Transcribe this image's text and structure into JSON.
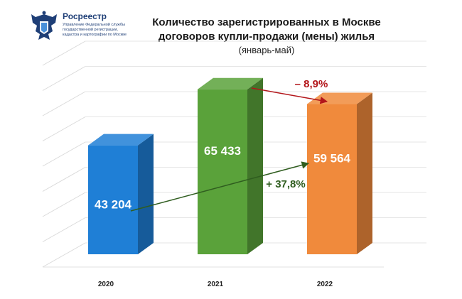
{
  "header": {
    "org_name": "Росреестр",
    "org_subtitle_lines": [
      "Управление Федеральной службы",
      "государственной регистрации,",
      "кадастра и картографии по Москве"
    ]
  },
  "colors": {
    "bar_2020": "#1f7fd6",
    "bar_2021": "#5aa23a",
    "bar_2022": "#f08a3c",
    "arrow_up": "#2f5d1f",
    "arrow_down": "#b3161b"
  },
  "chart_data": {
    "type": "bar",
    "title": "Количество зарегистрированных в Москве договоров купли-продажи (мены) жилья",
    "title_lines": [
      "Количество зарегистрированных в Москве",
      "договоров купли-продажи (мены) жилья"
    ],
    "subtitle": "(январь-май)",
    "categories": [
      "2020",
      "2021",
      "2022"
    ],
    "values": [
      43204,
      65433,
      59564
    ],
    "value_labels": [
      "43 204",
      "65 433",
      "59 564"
    ],
    "ylim": [
      0,
      80000
    ],
    "grid": true,
    "annotations": [
      {
        "text": "+ 37,8%",
        "from": "2020",
        "to": "2022"
      },
      {
        "text": "– 8,9%",
        "from": "2021",
        "to": "2022"
      }
    ]
  }
}
